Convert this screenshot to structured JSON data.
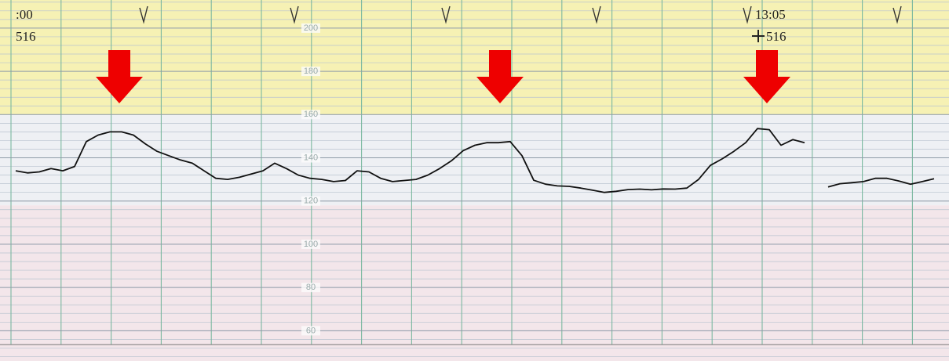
{
  "chart_data": {
    "type": "line",
    "ylim": [
      46,
      213
    ],
    "yticks": [
      60,
      80,
      100,
      120,
      140,
      160,
      180,
      200
    ],
    "grid": true,
    "bands": [
      {
        "from": 160,
        "to": 213,
        "color": "#f6f1b4"
      },
      {
        "from": 118,
        "to": 160,
        "color": "#eef0f4"
      },
      {
        "from": 46,
        "to": 118,
        "color": "#f3e6ea"
      }
    ],
    "annotations": [
      ":00",
      "516",
      "13:05",
      "516"
    ],
    "series": [
      {
        "color": "#111111",
        "values": [
          134,
          133,
          133.5,
          135,
          134,
          136,
          147.5,
          150.5,
          152,
          152,
          150.5,
          146.5,
          143,
          141,
          139,
          137.5,
          134,
          130.5,
          130,
          131,
          132.5,
          134,
          137.5,
          135,
          132,
          130.5,
          130,
          129,
          129.5,
          134,
          133.5,
          130.5,
          129,
          129.5,
          130,
          132,
          135,
          138.6,
          143.3,
          145.8,
          147,
          147,
          147.5,
          141,
          129.6,
          127.8,
          127,
          126.8,
          126,
          125,
          124,
          124.5,
          125.3,
          125.5,
          125.2,
          125.6,
          125.5,
          126,
          130,
          136.5,
          139.5,
          143,
          147,
          153.5,
          153,
          145.8,
          148.4,
          147,
          null,
          126.5,
          128,
          128.5,
          129,
          130.5,
          130.5,
          129.3,
          127.8,
          129,
          130.3
        ]
      }
    ]
  }
}
